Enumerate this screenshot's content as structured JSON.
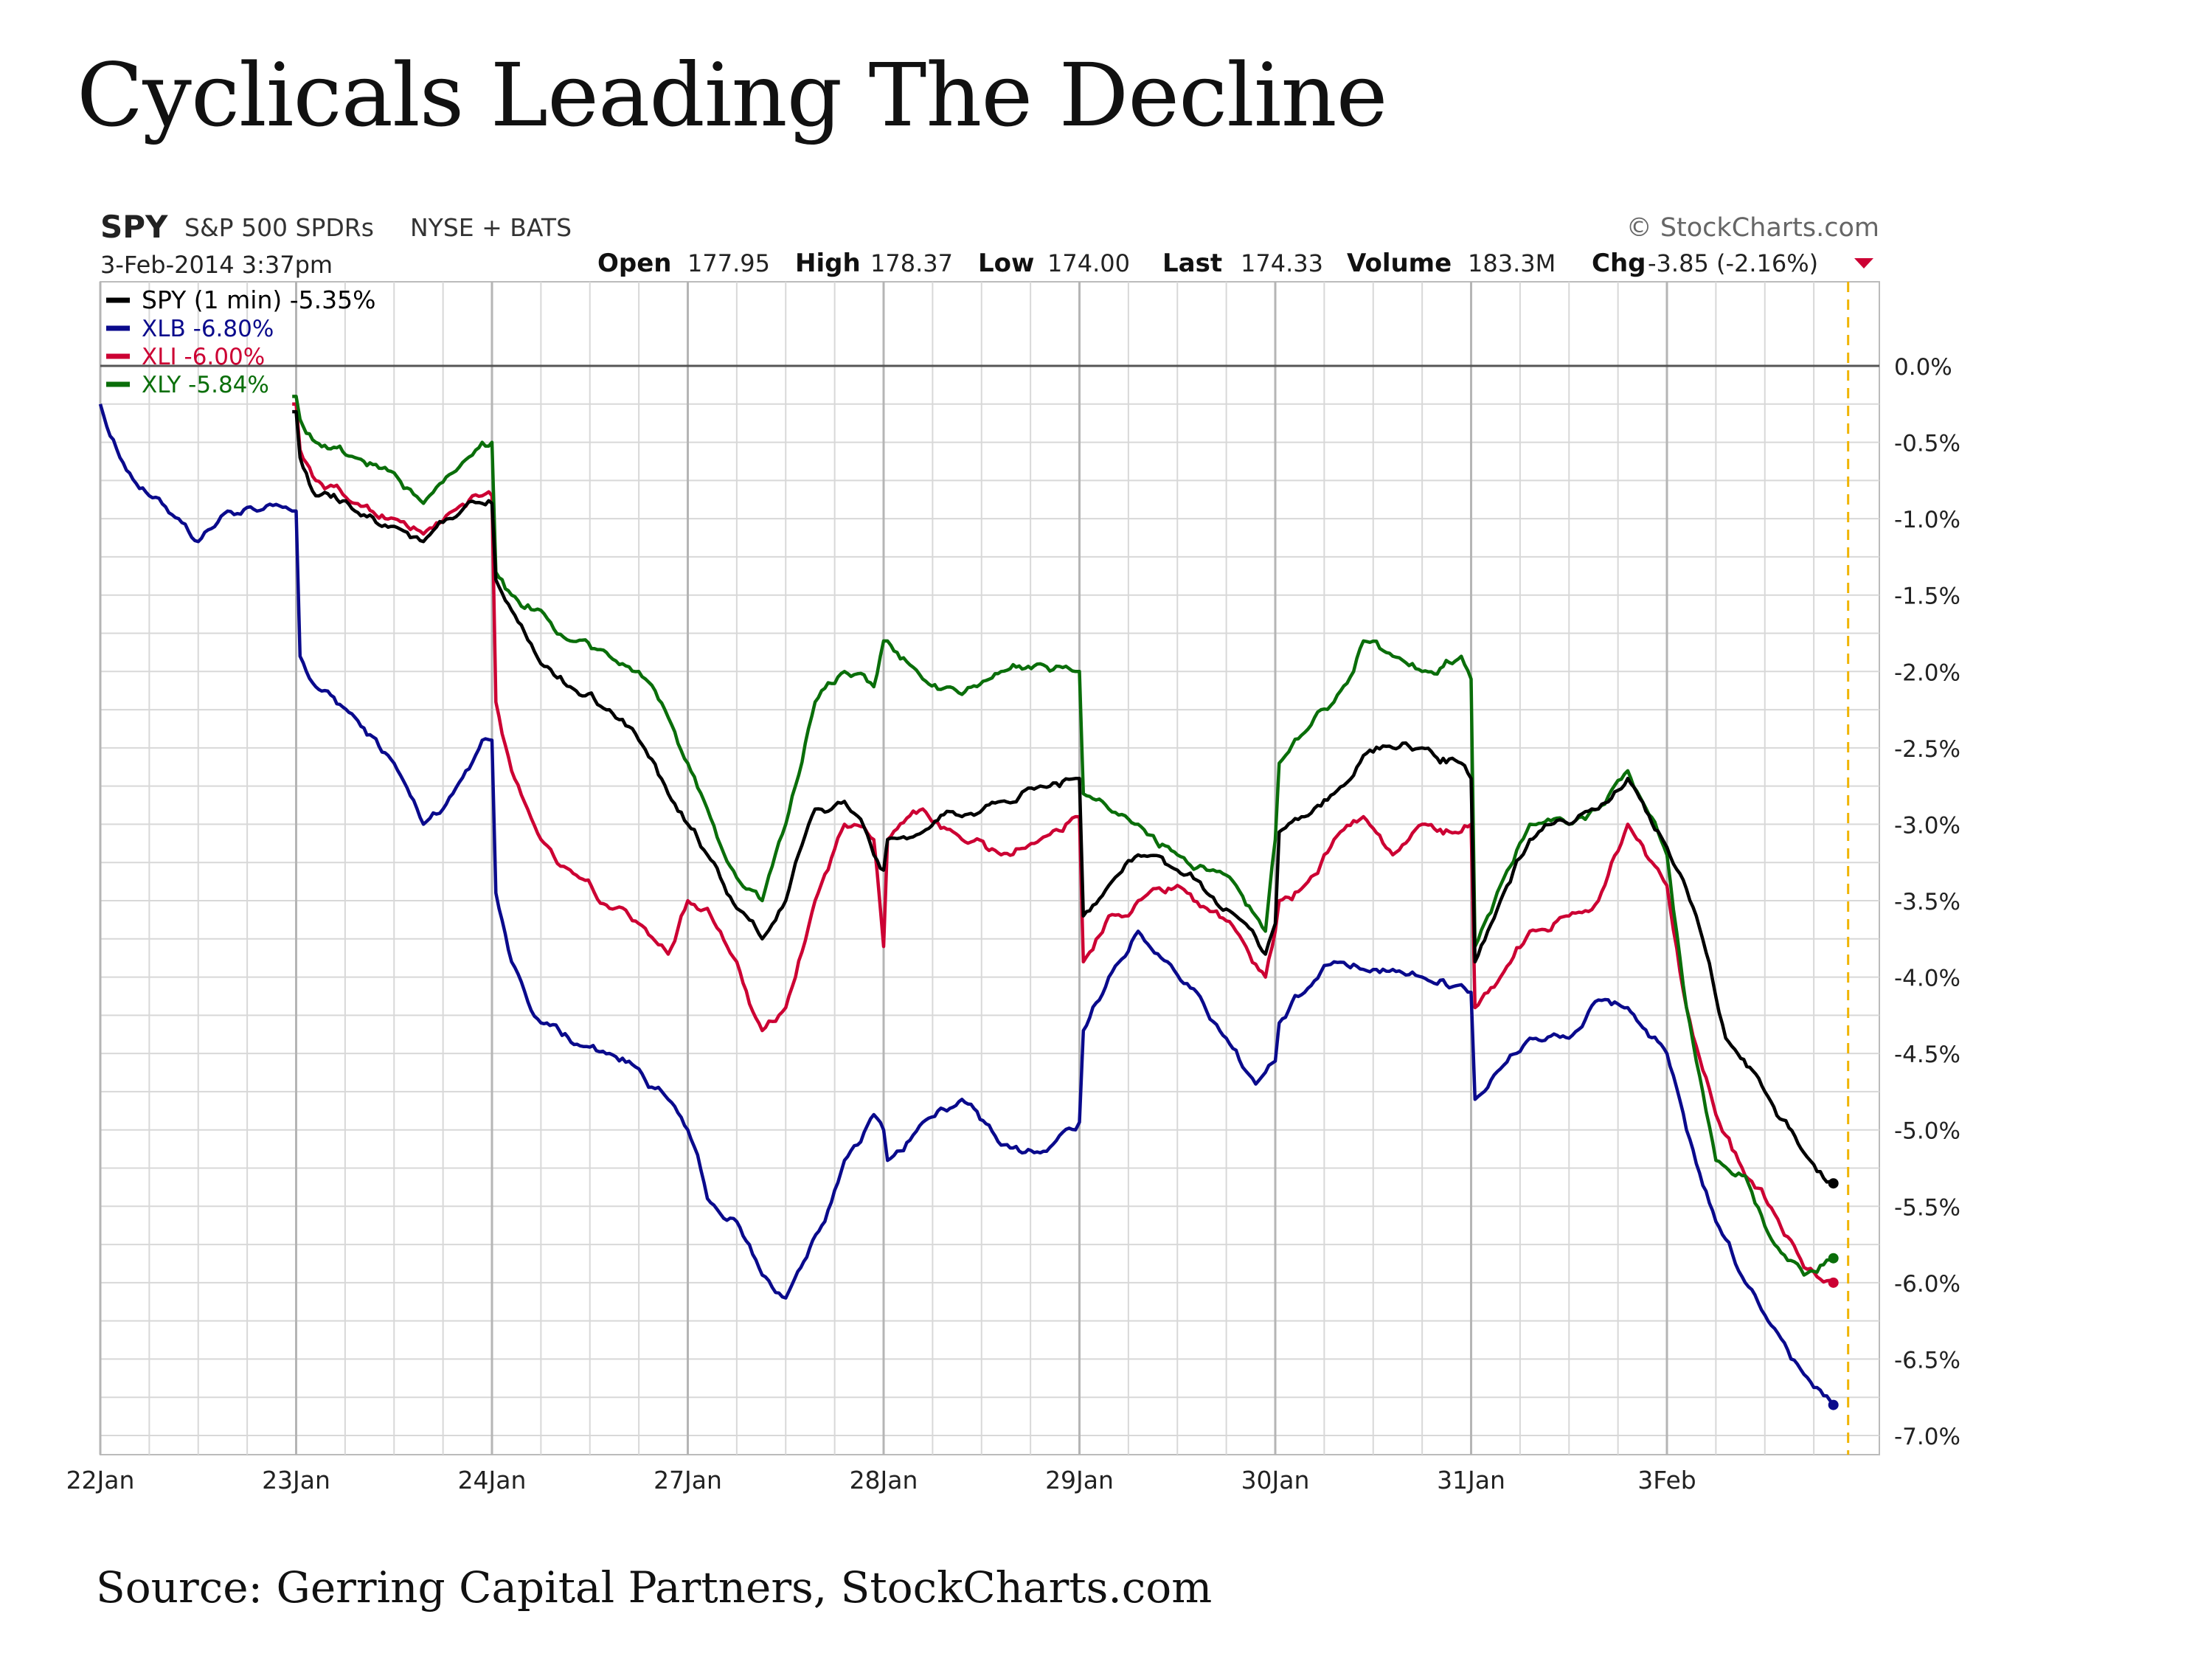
{
  "title": "Cyclicals Leading The Decline",
  "source": "Source: Gerring Capital Partners, StockCharts.com",
  "header": {
    "symbol": "SPY",
    "name": "S&P 500 SPDRs",
    "exchange": "NYSE + BATS",
    "brand": "© StockCharts.com",
    "datetime": "3-Feb-2014 3:37pm",
    "quote": [
      {
        "label": "Open",
        "value": "177.95"
      },
      {
        "label": "High",
        "value": "178.37"
      },
      {
        "label": "Low",
        "value": "174.00"
      },
      {
        "label": "Last",
        "value": "174.33"
      },
      {
        "label": "Volume",
        "value": "183.3M"
      },
      {
        "label": "Chg",
        "value": "-3.85 (-2.16%)"
      }
    ],
    "chg_icon": "down-triangle-icon"
  },
  "colors": {
    "SPY": "#000000",
    "XLB": "#0a0a8c",
    "XLI": "#cc0033",
    "XLY": "#0a6e0a",
    "zero_line": "#555555",
    "current_marker": "#f0b400",
    "grid": "#d8d8d8"
  },
  "chart_data": {
    "type": "line",
    "x_unit": "trading day index (0 = 22 Jan open)",
    "categories": [
      "22Jan",
      "23Jan",
      "24Jan",
      "27Jan",
      "28Jan",
      "29Jan",
      "30Jan",
      "31Jan",
      "3Feb"
    ],
    "ylim": [
      -7.0,
      0.0
    ],
    "y_ticks": [
      "0.0%",
      "-0.5%",
      "-1.0%",
      "-1.5%",
      "-2.0%",
      "-2.5%",
      "-3.0%",
      "-3.5%",
      "-4.0%",
      "-4.5%",
      "-5.0%",
      "-5.5%",
      "-6.0%",
      "-6.5%",
      "-7.0%"
    ],
    "grid": true,
    "legend_position": "top-left",
    "series": [
      {
        "name": "SPY (1 min) -5.35%",
        "key": "SPY",
        "x": [
          0.98,
          1.0,
          1.02,
          1.1,
          1.3,
          1.5,
          1.65,
          1.8,
          1.95,
          2.0,
          2.02,
          2.1,
          2.25,
          2.4,
          2.6,
          2.75,
          2.9,
          3.0,
          3.1,
          3.25,
          3.38,
          3.5,
          3.65,
          3.8,
          3.95,
          4.0,
          4.02,
          4.2,
          4.4,
          4.6,
          4.8,
          4.98,
          5.0,
          5.02,
          5.15,
          5.3,
          5.5,
          5.65,
          5.8,
          5.95,
          6.0,
          6.02,
          6.15,
          6.3,
          6.45,
          6.6,
          6.75,
          6.95,
          7.0,
          7.02,
          7.15,
          7.3,
          7.5,
          7.65,
          7.8,
          8.0,
          8.15,
          8.3,
          8.5,
          8.7,
          8.85
        ],
        "values": [
          -0.3,
          -0.3,
          -0.6,
          -0.85,
          -0.95,
          -1.05,
          -1.15,
          -1.0,
          -0.9,
          -0.9,
          -1.4,
          -1.6,
          -1.95,
          -2.1,
          -2.25,
          -2.45,
          -2.8,
          -3.0,
          -3.2,
          -3.55,
          -3.75,
          -3.5,
          -2.9,
          -2.85,
          -3.2,
          -3.3,
          -3.1,
          -3.05,
          -2.95,
          -2.85,
          -2.75,
          -2.7,
          -2.7,
          -3.6,
          -3.4,
          -3.2,
          -3.3,
          -3.45,
          -3.6,
          -3.85,
          -3.65,
          -3.05,
          -2.95,
          -2.8,
          -2.55,
          -2.5,
          -2.5,
          -2.6,
          -2.7,
          -3.9,
          -3.5,
          -3.1,
          -3.0,
          -2.9,
          -2.7,
          -3.15,
          -3.6,
          -4.4,
          -4.75,
          -5.15,
          -5.35
        ]
      },
      {
        "name": "XLB -6.80%",
        "key": "XLB",
        "x": [
          0.0,
          0.1,
          0.25,
          0.4,
          0.5,
          0.65,
          0.8,
          0.98,
          1.0,
          1.02,
          1.1,
          1.3,
          1.5,
          1.65,
          1.8,
          1.95,
          2.0,
          2.02,
          2.1,
          2.25,
          2.45,
          2.6,
          2.75,
          2.9,
          3.0,
          3.1,
          3.25,
          3.38,
          3.5,
          3.7,
          3.8,
          3.95,
          4.0,
          4.02,
          4.2,
          4.4,
          4.6,
          4.8,
          4.98,
          5.0,
          5.02,
          5.15,
          5.3,
          5.45,
          5.6,
          5.75,
          5.9,
          6.0,
          6.02,
          6.15,
          6.3,
          6.45,
          6.6,
          6.75,
          6.95,
          7.0,
          7.02,
          7.15,
          7.3,
          7.5,
          7.65,
          7.8,
          8.0,
          8.1,
          8.25,
          8.4,
          8.55,
          8.7,
          8.85
        ],
        "values": [
          -0.25,
          -0.6,
          -0.85,
          -1.0,
          -1.15,
          -0.95,
          -0.95,
          -0.95,
          -0.95,
          -1.9,
          -2.1,
          -2.3,
          -2.6,
          -3.0,
          -2.8,
          -2.45,
          -2.45,
          -3.45,
          -3.9,
          -4.3,
          -4.45,
          -4.5,
          -4.6,
          -4.8,
          -5.0,
          -5.45,
          -5.6,
          -5.95,
          -6.1,
          -5.6,
          -5.2,
          -4.9,
          -5.0,
          -5.2,
          -4.95,
          -4.8,
          -5.1,
          -5.15,
          -5.0,
          -4.95,
          -4.35,
          -4.0,
          -3.7,
          -3.9,
          -4.1,
          -4.4,
          -4.7,
          -4.55,
          -4.3,
          -4.1,
          -3.9,
          -3.95,
          -3.95,
          -4.0,
          -4.05,
          -4.1,
          -4.8,
          -4.6,
          -4.4,
          -4.4,
          -4.15,
          -4.2,
          -4.5,
          -5.0,
          -5.6,
          -6.0,
          -6.3,
          -6.6,
          -6.8
        ]
      },
      {
        "name": "XLI -6.00%",
        "key": "XLI",
        "x": [
          0.98,
          1.0,
          1.02,
          1.1,
          1.3,
          1.5,
          1.65,
          1.8,
          1.95,
          2.0,
          2.02,
          2.1,
          2.25,
          2.4,
          2.6,
          2.75,
          2.9,
          3.0,
          3.1,
          3.25,
          3.38,
          3.5,
          3.65,
          3.8,
          3.95,
          4.0,
          4.02,
          4.2,
          4.4,
          4.6,
          4.8,
          4.98,
          5.0,
          5.02,
          5.15,
          5.3,
          5.5,
          5.65,
          5.8,
          5.95,
          6.0,
          6.02,
          6.15,
          6.3,
          6.45,
          6.6,
          6.75,
          6.95,
          7.0,
          7.02,
          7.15,
          7.3,
          7.5,
          7.65,
          7.8,
          8.0,
          8.1,
          8.25,
          8.4,
          8.55,
          8.7,
          8.85
        ],
        "values": [
          -0.25,
          -0.25,
          -0.55,
          -0.75,
          -0.9,
          -1.0,
          -1.1,
          -0.95,
          -0.85,
          -0.85,
          -2.2,
          -2.65,
          -3.1,
          -3.3,
          -3.55,
          -3.65,
          -3.85,
          -3.5,
          -3.55,
          -3.9,
          -4.35,
          -4.2,
          -3.5,
          -3.0,
          -3.1,
          -3.8,
          -3.1,
          -2.9,
          -3.1,
          -3.2,
          -3.1,
          -2.95,
          -2.95,
          -3.9,
          -3.6,
          -3.5,
          -3.4,
          -3.55,
          -3.7,
          -4.0,
          -3.7,
          -3.5,
          -3.4,
          -3.1,
          -2.95,
          -3.2,
          -3.0,
          -3.05,
          -3.0,
          -4.2,
          -4.0,
          -3.7,
          -3.6,
          -3.5,
          -3.0,
          -3.4,
          -4.2,
          -4.9,
          -5.3,
          -5.55,
          -5.9,
          -6.0
        ]
      },
      {
        "name": "XLY -5.84%",
        "key": "XLY",
        "x": [
          0.98,
          1.0,
          1.02,
          1.1,
          1.3,
          1.5,
          1.65,
          1.8,
          1.95,
          2.0,
          2.02,
          2.1,
          2.25,
          2.4,
          2.6,
          2.75,
          2.9,
          3.0,
          3.1,
          3.25,
          3.38,
          3.5,
          3.65,
          3.8,
          3.95,
          4.0,
          4.02,
          4.2,
          4.4,
          4.6,
          4.8,
          4.98,
          5.0,
          5.02,
          5.15,
          5.3,
          5.5,
          5.65,
          5.8,
          5.95,
          6.0,
          6.02,
          6.15,
          6.3,
          6.45,
          6.6,
          6.75,
          6.95,
          7.0,
          7.02,
          7.15,
          7.3,
          7.5,
          7.65,
          7.8,
          8.0,
          8.1,
          8.25,
          8.4,
          8.55,
          8.7,
          8.85
        ],
        "values": [
          -0.2,
          -0.2,
          -0.35,
          -0.5,
          -0.6,
          -0.7,
          -0.9,
          -0.7,
          -0.5,
          -0.5,
          -1.35,
          -1.5,
          -1.6,
          -1.8,
          -1.9,
          -2.0,
          -2.3,
          -2.6,
          -2.9,
          -3.35,
          -3.5,
          -3.0,
          -2.2,
          -2.0,
          -2.1,
          -1.8,
          -1.8,
          -2.05,
          -2.15,
          -2.0,
          -1.95,
          -2.0,
          -2.0,
          -2.8,
          -2.9,
          -3.0,
          -3.2,
          -3.3,
          -3.4,
          -3.7,
          -3.1,
          -2.6,
          -2.4,
          -2.2,
          -1.8,
          -1.9,
          -2.0,
          -1.9,
          -2.05,
          -3.8,
          -3.4,
          -3.0,
          -3.0,
          -2.9,
          -2.65,
          -3.2,
          -4.2,
          -5.2,
          -5.3,
          -5.75,
          -5.95,
          -5.84
        ]
      }
    ]
  }
}
